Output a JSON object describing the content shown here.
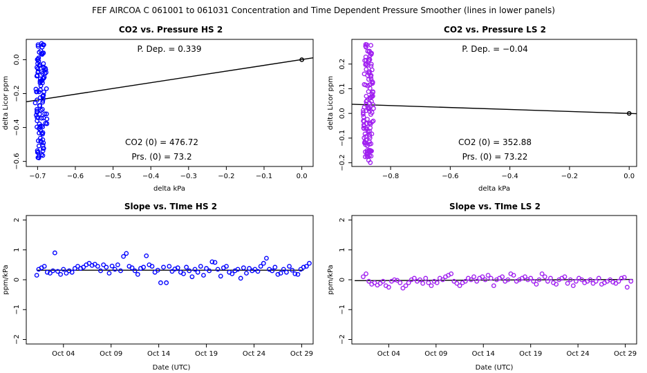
{
  "figure_title": "FEF   AIRCOA C   061001 to 061031   Concentration and Time Dependent Pressure Smoother (lines in lower panels)",
  "colors": {
    "blue": "#0000ff",
    "purple": "#a020f0",
    "black": "#000000"
  },
  "chart_data": [
    {
      "id": "hs-pressure",
      "type": "scatter",
      "title": "CO2 vs. Pressure HS 2",
      "xlabel": "delta kPa",
      "ylabel": "delta Licor ppm",
      "xlim": [
        -0.73,
        0.03
      ],
      "ylim": [
        -0.63,
        0.12
      ],
      "xticks": [
        -0.7,
        -0.6,
        -0.5,
        -0.4,
        -0.3,
        -0.2,
        -0.1,
        0.0
      ],
      "xtick_labels": [
        "−0.7",
        "−0.6",
        "−0.5",
        "−0.4",
        "−0.3",
        "−0.2",
        "−0.1",
        "0.0"
      ],
      "yticks": [
        -0.6,
        -0.4,
        -0.2,
        0.0
      ],
      "ytick_labels": [
        "−0.6",
        "−0.4",
        "−0.2",
        "0.0"
      ],
      "marker_color": "#0000ff",
      "cluster": {
        "x_center": -0.69,
        "x_spread": 0.018,
        "y_min": -0.6,
        "y_max": 0.1,
        "count": 110,
        "seed": 11
      },
      "fit_line": {
        "x": [
          -0.73,
          0.03
        ],
        "y": [
          -0.248,
          0.011
        ]
      },
      "reference_point": {
        "x": 0.0,
        "y": 0.0
      },
      "annotations": {
        "p_dep": "P. Dep. =  0.339",
        "co2_0": "CO2 (0) =  476.72",
        "prs_0": "Prs. (0) = 73.2"
      }
    },
    {
      "id": "ls-pressure",
      "type": "scatter",
      "title": "CO2 vs. Pressure LS 2",
      "xlabel": "delta kPa",
      "ylabel": "delta Licor ppm",
      "xlim": [
        -0.93,
        0.025
      ],
      "ylim": [
        -0.215,
        0.3
      ],
      "xticks": [
        -0.8,
        -0.6,
        -0.4,
        -0.2,
        0.0
      ],
      "xtick_labels": [
        "−0.8",
        "−0.6",
        "−0.4",
        "−0.2",
        "0.0"
      ],
      "yticks": [
        -0.2,
        -0.1,
        0.0,
        0.1,
        0.2
      ],
      "ytick_labels": [
        "−0.2",
        "−0.1",
        "0.0",
        "0.1",
        "0.2"
      ],
      "marker_color": "#a020f0",
      "cluster": {
        "x_center": -0.875,
        "x_spread": 0.02,
        "y_min": -0.2,
        "y_max": 0.28,
        "count": 130,
        "seed": 23
      },
      "fit_line": {
        "x": [
          -0.93,
          0.025
        ],
        "y": [
          0.037,
          -0.001
        ]
      },
      "reference_point": {
        "x": 0.0,
        "y": 0.0
      },
      "annotations": {
        "p_dep": "P. Dep. =  −0.04",
        "co2_0": "CO2 (0) =  352.88",
        "prs_0": "Prs. (0) =  73.22"
      }
    },
    {
      "id": "hs-slope",
      "type": "scatter",
      "title": "Slope vs. TIme HS 2",
      "xlabel": "Date (UTC)",
      "ylabel": "ppm/kPa",
      "xlim": [
        0.1,
        30.2
      ],
      "ylim": [
        -2.15,
        2.15
      ],
      "xticks": [
        4,
        9,
        14,
        19,
        24,
        29
      ],
      "xtick_labels": [
        "Oct 04",
        "Oct 09",
        "Oct 14",
        "Oct 19",
        "Oct 24",
        "Oct 29"
      ],
      "yticks": [
        -2,
        -1,
        0,
        1,
        2
      ],
      "ytick_labels": [
        "−2",
        "−1",
        "0",
        "1",
        "2"
      ],
      "marker_color": "#0000ff",
      "x": [
        1.2,
        1.4,
        1.7,
        2.0,
        2.3,
        2.6,
        2.9,
        3.1,
        3.4,
        3.7,
        4.0,
        4.3,
        4.6,
        4.9,
        5.2,
        5.5,
        5.8,
        6.1,
        6.4,
        6.7,
        7.0,
        7.3,
        7.6,
        7.9,
        8.2,
        8.5,
        8.8,
        9.1,
        9.4,
        9.7,
        10.0,
        10.3,
        10.6,
        10.9,
        11.2,
        11.5,
        11.8,
        12.1,
        12.4,
        12.7,
        13.0,
        13.3,
        13.6,
        13.9,
        14.2,
        14.5,
        14.8,
        15.1,
        15.4,
        15.7,
        16.0,
        16.3,
        16.6,
        16.9,
        17.2,
        17.5,
        17.8,
        18.1,
        18.4,
        18.7,
        19.0,
        19.3,
        19.6,
        19.9,
        20.2,
        20.5,
        20.8,
        21.1,
        21.4,
        21.7,
        22.0,
        22.3,
        22.6,
        22.9,
        23.2,
        23.5,
        23.8,
        24.1,
        24.4,
        24.7,
        25.0,
        25.3,
        25.6,
        25.9,
        26.2,
        26.5,
        26.8,
        27.1,
        27.4,
        27.7,
        28.0,
        28.3,
        28.6,
        28.9,
        29.2
      ],
      "y": [
        0.15,
        0.35,
        0.4,
        0.45,
        0.25,
        0.22,
        0.3,
        0.9,
        0.28,
        0.18,
        0.35,
        0.22,
        0.3,
        0.25,
        0.38,
        0.45,
        0.38,
        0.42,
        0.5,
        0.55,
        0.48,
        0.52,
        0.45,
        0.3,
        0.5,
        0.42,
        0.22,
        0.46,
        0.35,
        0.5,
        0.3,
        0.78,
        0.88,
        0.45,
        0.4,
        0.3,
        0.18,
        0.38,
        0.42,
        0.8,
        0.5,
        0.45,
        0.25,
        0.32,
        -0.1,
        0.42,
        -0.1,
        0.45,
        0.28,
        0.36,
        0.4,
        0.25,
        0.2,
        0.42,
        0.3,
        0.1,
        0.35,
        0.25,
        0.45,
        0.15,
        0.38,
        0.3,
        0.6,
        0.58,
        0.35,
        0.12,
        0.4,
        0.45,
        0.25,
        0.2,
        0.3,
        0.35,
        0.05,
        0.4,
        0.22,
        0.38,
        0.3,
        0.35,
        0.28,
        0.45,
        0.55,
        0.72,
        0.35,
        0.3,
        0.42,
        0.18,
        0.22,
        0.35,
        0.25,
        0.45,
        0.32,
        0.2,
        0.18,
        0.35,
        0.42
      ],
      "extra": [
        {
          "x": 29.8,
          "y": 0.55
        },
        {
          "x": 29.5,
          "y": 0.45
        }
      ],
      "smoother": {
        "x": [
          1.2,
          29.2
        ],
        "y": [
          0.32,
          0.32
        ]
      }
    },
    {
      "id": "ls-slope",
      "type": "scatter",
      "title": "Slope vs. TIme LS 2",
      "xlabel": "Date (UTC)",
      "ylabel": "ppm/kPa",
      "xlim": [
        0.1,
        30.2
      ],
      "ylim": [
        -2.15,
        2.15
      ],
      "xticks": [
        4,
        9,
        14,
        19,
        24,
        29
      ],
      "xtick_labels": [
        "Oct 04",
        "Oct 09",
        "Oct 14",
        "Oct 19",
        "Oct 24",
        "Oct 29"
      ],
      "yticks": [
        -2,
        -1,
        0,
        1,
        2
      ],
      "ytick_labels": [
        "−2",
        "−1",
        "0",
        "1",
        "2"
      ],
      "marker_color": "#a020f0",
      "x": [
        1.3,
        1.6,
        1.9,
        2.2,
        2.5,
        2.8,
        3.1,
        3.4,
        3.7,
        4.0,
        4.3,
        4.6,
        4.9,
        5.2,
        5.5,
        5.8,
        6.1,
        6.4,
        6.7,
        7.0,
        7.3,
        7.6,
        7.9,
        8.2,
        8.5,
        8.8,
        9.1,
        9.4,
        9.7,
        10.0,
        10.3,
        10.6,
        10.9,
        11.2,
        11.5,
        11.8,
        12.1,
        12.4,
        12.7,
        13.0,
        13.3,
        13.6,
        13.9,
        14.2,
        14.5,
        14.8,
        15.1,
        15.4,
        15.7,
        16.0,
        16.3,
        16.6,
        16.9,
        17.2,
        17.5,
        17.8,
        18.1,
        18.4,
        18.7,
        19.0,
        19.3,
        19.6,
        19.9,
        20.2,
        20.5,
        20.8,
        21.1,
        21.4,
        21.7,
        22.0,
        22.3,
        22.6,
        22.9,
        23.2,
        23.5,
        23.8,
        24.1,
        24.4,
        24.7,
        25.0,
        25.3,
        25.6,
        25.9,
        26.2,
        26.5,
        26.8,
        27.1,
        27.4,
        27.7,
        28.0,
        28.3,
        28.6,
        28.9,
        29.2
      ],
      "y": [
        0.1,
        0.2,
        -0.05,
        -0.15,
        -0.1,
        -0.18,
        -0.12,
        -0.05,
        -0.2,
        -0.25,
        -0.05,
        0.0,
        -0.02,
        -0.1,
        -0.28,
        -0.2,
        -0.1,
        0.0,
        0.05,
        -0.05,
        0.0,
        -0.12,
        0.05,
        -0.1,
        -0.2,
        -0.05,
        -0.1,
        0.05,
        0.0,
        0.1,
        0.15,
        0.2,
        -0.05,
        -0.12,
        -0.2,
        -0.1,
        -0.05,
        0.05,
        0.0,
        0.1,
        -0.05,
        0.05,
        0.1,
        0.0,
        0.15,
        0.05,
        -0.2,
        0.0,
        0.05,
        0.1,
        -0.05,
        0.0,
        0.2,
        0.15,
        -0.05,
        0.0,
        0.05,
        0.1,
        0.0,
        0.05,
        -0.05,
        -0.15,
        0.0,
        0.2,
        0.1,
        -0.05,
        0.05,
        -0.1,
        -0.15,
        0.0,
        0.05,
        0.1,
        -0.12,
        0.0,
        -0.2,
        -0.05,
        0.05,
        0.0,
        -0.1,
        -0.05,
        0.0,
        -0.12,
        -0.05,
        0.05,
        -0.15,
        -0.1,
        -0.05,
        0.0,
        -0.08,
        -0.12,
        -0.05,
        0.05,
        0.08,
        -0.25
      ],
      "extra": [
        {
          "x": 29.6,
          "y": -0.05
        }
      ],
      "smoother": {
        "x": [
          0.4,
          29.8
        ],
        "y": [
          -0.03,
          0.01
        ]
      }
    }
  ]
}
